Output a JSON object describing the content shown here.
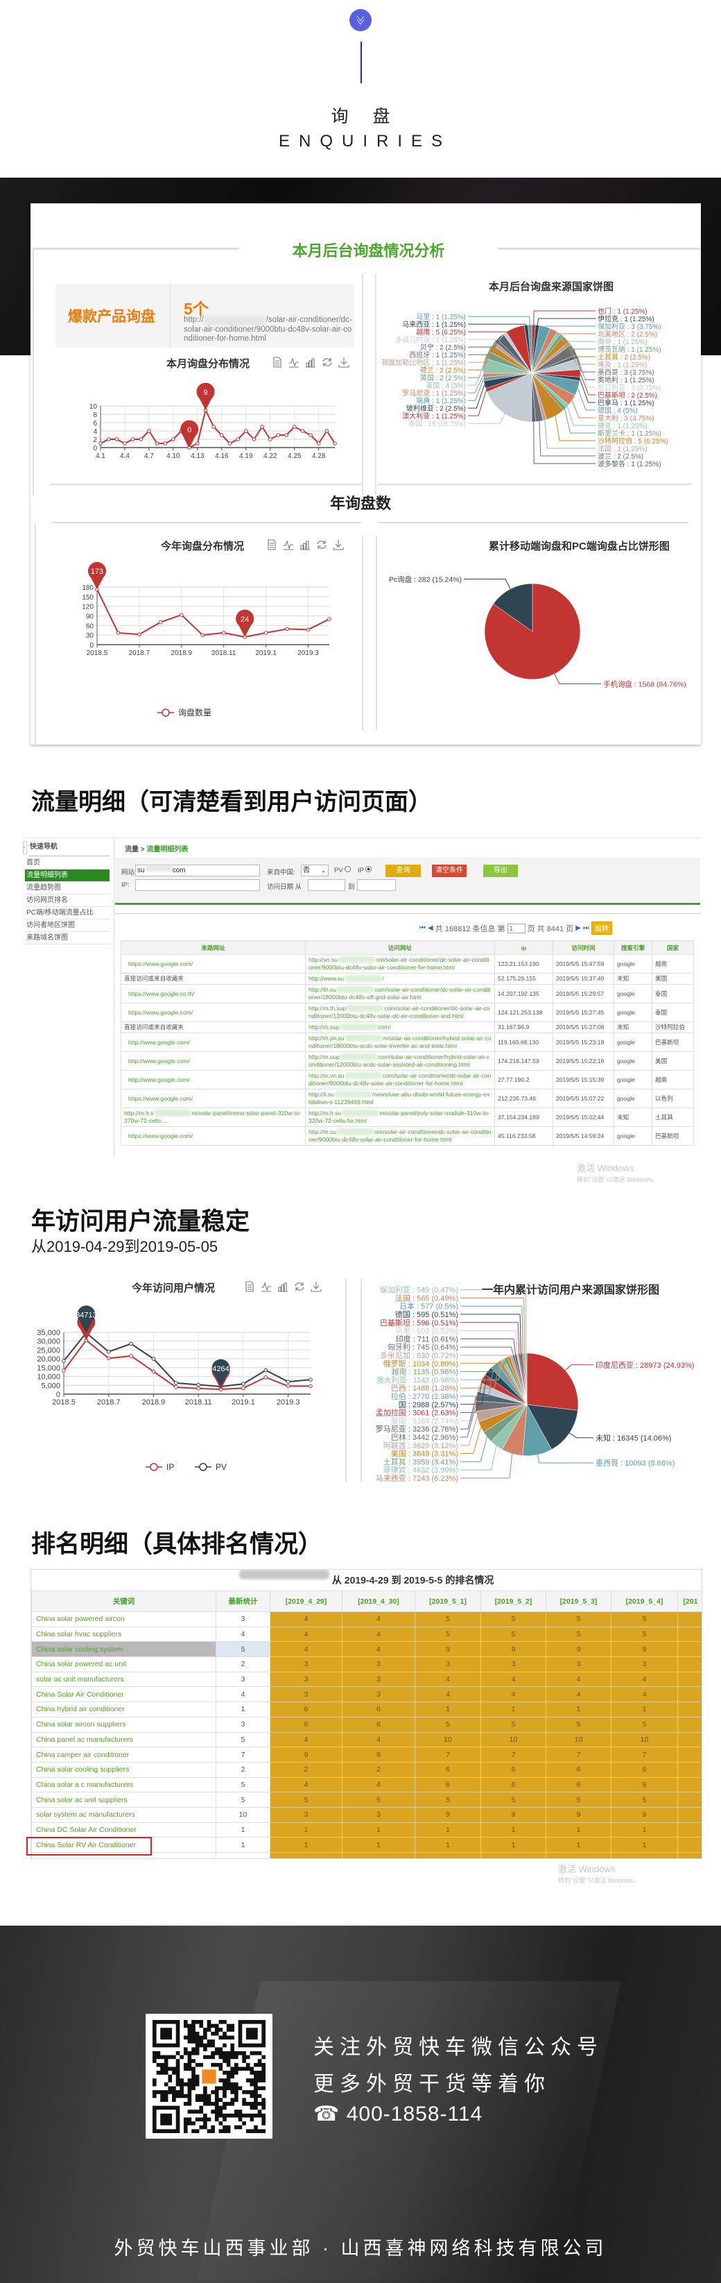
{
  "header": {
    "title_cn": "询 盘",
    "title_en": "ENQUIRIES",
    "icon": "double-chevron-down-icon"
  },
  "colors": {
    "accent_blue": "#5a5fe0",
    "green": "#4a9e2c",
    "orange": "#f07c0c",
    "red": "#c23531",
    "dark": "#2f4554",
    "rank_yellow": "#daa520",
    "palette": [
      "#c23531",
      "#2f4554",
      "#61a0a8",
      "#d48265",
      "#91c7ae",
      "#749f83",
      "#ca8622",
      "#bda29a",
      "#6e7074",
      "#546570",
      "#c4ccd3"
    ]
  },
  "analysis": {
    "title": "本月后台询盘情况分析",
    "hot_label": "爆款产品询盘",
    "hot_count": "5个",
    "hot_url_prefix": "http://",
    "hot_url_suffix": "/solar-air-conditioner/dc-solar-air-conditioner/9000btu-dc48v-solar-air-conditioner-for-home.html",
    "year_title": "年询盘数"
  },
  "toolbox": [
    "data-view-icon",
    "line-chart-icon",
    "bar-chart-icon",
    "restore-icon",
    "save-image-icon"
  ],
  "chart_data": [
    {
      "type": "line",
      "title": "本月询盘分布情况",
      "categories": [
        "4.1",
        "4.2",
        "4.3",
        "4.4",
        "4.5",
        "4.6",
        "4.7",
        "4.8",
        "4.9",
        "4.10",
        "4.11",
        "4.12",
        "4.13",
        "4.14",
        "4.15",
        "4.16",
        "4.17",
        "4.18",
        "4.19",
        "4.20",
        "4.21",
        "4.22",
        "4.23",
        "4.24",
        "4.25",
        "4.26",
        "4.27",
        "4.28",
        "4.29",
        "4.30"
      ],
      "xtick_labels": [
        "4.1",
        "4.4",
        "4.7",
        "4.10",
        "4.13",
        "4.16",
        "4.19",
        "4.22",
        "4.25",
        "4.28"
      ],
      "series": [
        {
          "values": [
            1,
            2,
            2,
            1,
            2,
            2,
            4,
            1,
            1,
            2,
            4,
            0,
            1,
            9,
            5,
            3,
            1,
            2,
            4,
            2,
            5,
            2,
            3,
            3,
            5,
            4,
            3,
            1,
            4,
            1
          ],
          "color": "#c23531"
        }
      ],
      "ylim": [
        0,
        10
      ],
      "yticks": [
        0,
        2,
        4,
        6,
        8,
        10
      ],
      "grid": true,
      "markers": [
        {
          "label": "9",
          "category": "4.14",
          "value": 9,
          "color": "#c23531"
        },
        {
          "label": "0",
          "category": "4.12",
          "value": 0,
          "color": "#c23531"
        }
      ]
    },
    {
      "type": "pie",
      "title": "本月后台询盘来源国家饼图",
      "slices": [
        {
          "name": "也门",
          "value": 1,
          "percent": "1.25%"
        },
        {
          "name": "伊拉克",
          "value": 1,
          "percent": "1.25%"
        },
        {
          "name": "保加利亚",
          "value": 3,
          "percent": "3.75%"
        },
        {
          "name": "北美地区",
          "value": 2,
          "percent": "2.5%"
        },
        {
          "name": "南非",
          "value": 1,
          "percent": "1.25%"
        },
        {
          "name": "博茨瓦纳",
          "value": 1,
          "percent": "1.25%"
        },
        {
          "name": "土耳其",
          "value": 2,
          "percent": "2.5%"
        },
        {
          "name": "埃及",
          "value": 1,
          "percent": "1.25%"
        },
        {
          "name": "墨西哥",
          "value": 3,
          "percent": "3.75%"
        },
        {
          "name": "奥地利",
          "value": 1,
          "percent": "1.25%"
        },
        {
          "name": "尼日利亚",
          "value": 3,
          "percent": "3.75%"
        },
        {
          "name": "巴基斯坦",
          "value": 2,
          "percent": "2.5%"
        },
        {
          "name": "巴拿马",
          "value": 1,
          "percent": "1.25%"
        },
        {
          "name": "德国",
          "value": 4,
          "percent": "5%"
        },
        {
          "name": "意大利",
          "value": 3,
          "percent": "3.75%"
        },
        {
          "name": "捷克",
          "value": 1,
          "percent": "1.25%"
        },
        {
          "name": "斯里兰卡",
          "value": 1,
          "percent": "1.25%"
        },
        {
          "name": "沙特阿拉伯",
          "value": 5,
          "percent": "6.25%"
        },
        {
          "name": "法国",
          "value": 1,
          "percent": "1.25%"
        },
        {
          "name": "波兰",
          "value": 2,
          "percent": "2.5%"
        },
        {
          "name": "波多黎各",
          "value": 1,
          "percent": "1.25%"
        },
        {
          "name": "泰国",
          "value": 15,
          "percent": "18.75%"
        },
        {
          "name": "澳大利亚",
          "value": 1,
          "percent": "1.25%"
        },
        {
          "name": "玻利维亚",
          "value": 2,
          "percent": "2.5%"
        },
        {
          "name": "瑞典",
          "value": 1,
          "percent": "1.25%"
        },
        {
          "name": "罗马尼亚",
          "value": 1,
          "percent": "1.25%"
        },
        {
          "name": "美国",
          "value": 4,
          "percent": "5%"
        },
        {
          "name": "英国",
          "value": 2,
          "percent": "2.5%"
        },
        {
          "name": "荷兰",
          "value": 2,
          "percent": "2.5%"
        },
        {
          "name": "荷属加勒比地区",
          "value": 1,
          "percent": "1.25%"
        },
        {
          "name": "西班牙",
          "value": 1,
          "percent": "1.25%"
        },
        {
          "name": "贝宁",
          "value": 2,
          "percent": "2.5%"
        },
        {
          "name": "赤道几内亚",
          "value": 1,
          "percent": "1.25%"
        },
        {
          "name": "越南",
          "value": 5,
          "percent": "6.25%"
        },
        {
          "name": "马来西亚",
          "value": 1,
          "percent": "1.25%"
        },
        {
          "name": "马里",
          "value": 1,
          "percent": "1.25%"
        }
      ]
    },
    {
      "type": "line",
      "title": "今年询盘分布情况",
      "categories": [
        "2018.5",
        "2018.6",
        "2018.7",
        "2018.8",
        "2018.9",
        "2018.10",
        "2018.11",
        "2018.12",
        "2019.1",
        "2019.2",
        "2019.3",
        "2019.4"
      ],
      "xtick_labels": [
        "2018.5",
        "2018.7",
        "2018.9",
        "2018.11",
        "2019.1",
        "2019.3"
      ],
      "series": [
        {
          "name": "询盘数量",
          "values": [
            173,
            37,
            32,
            70,
            93,
            30,
            37,
            24,
            37,
            49,
            47,
            80
          ],
          "color": "#c23531"
        }
      ],
      "ylim": [
        0,
        180
      ],
      "yticks": [
        0,
        30,
        60,
        90,
        120,
        150,
        180
      ],
      "grid": true,
      "legend": "bottom",
      "markers": [
        {
          "label": "173",
          "category": "2018.5",
          "value": 173,
          "color": "#c23531"
        },
        {
          "label": "24",
          "category": "2018.12",
          "value": 24,
          "color": "#c23531"
        }
      ]
    },
    {
      "type": "pie",
      "title": "累计移动端询盘和PC端询盘占比饼形图",
      "slices": [
        {
          "name": "手机询盘",
          "value": 1568,
          "percent": "84.76%",
          "color": "#c23531"
        },
        {
          "name": "Pc询盘",
          "value": 282,
          "percent": "15.24%",
          "color": "#2f4554"
        }
      ]
    },
    {
      "type": "line",
      "title": "今年访问用户情况",
      "categories": [
        "2018.5",
        "2018.6",
        "2018.7",
        "2018.8",
        "2018.9",
        "2018.10",
        "2018.11",
        "2018.12",
        "2019.1",
        "2019.2",
        "2019.3",
        "2019.4"
      ],
      "xtick_labels": [
        "2018.5",
        "2018.7",
        "2018.9",
        "2018.11",
        "2019.1",
        "2019.3"
      ],
      "series": [
        {
          "name": "IP",
          "values": [
            13400,
            30500,
            20300,
            21600,
            12800,
            3900,
            3200,
            2700,
            3400,
            9500,
            4500,
            4500
          ],
          "color": "#c23531"
        },
        {
          "name": "PV",
          "values": [
            18800,
            34713,
            24000,
            28500,
            20000,
            6300,
            5300,
            4264,
            5800,
            13500,
            7000,
            8200
          ],
          "color": "#2f4554"
        }
      ],
      "ylim": [
        0,
        35000
      ],
      "yticks": [
        0,
        5000,
        10000,
        15000,
        20000,
        25000,
        30000,
        35000
      ],
      "ytick_labels": [
        "0",
        "5,000",
        "10,000",
        "15,000",
        "20,000",
        "25,000",
        "30,000",
        "35,000"
      ],
      "grid": true,
      "legend": "bottom",
      "markers": [
        {
          "label": "",
          "category": "2018.6",
          "value": 30500,
          "color": "#c23531"
        },
        {
          "label": "",
          "category": "2018.12",
          "value": 2700,
          "color": "#c23531"
        },
        {
          "label": "34713",
          "category": "2018.6",
          "value": 34713,
          "color": "#2f4554"
        },
        {
          "label": "4264",
          "category": "2018.12",
          "value": 4264,
          "color": "#2f4554"
        }
      ]
    },
    {
      "type": "pie",
      "title": "一年内累计访问用户来源国家饼形图",
      "slices": [
        {
          "name": "印度尼西亚",
          "value": 28973,
          "percent": "24.93%"
        },
        {
          "name": "未知",
          "value": 16345,
          "percent": "14.06%"
        },
        {
          "name": "墨西哥",
          "value": 10093,
          "percent": "8.68%"
        },
        {
          "name": "马来西亚",
          "value": 7243,
          "percent": "6.23%"
        },
        {
          "name": "菲律宾",
          "value": 4632,
          "percent": "3.99%"
        },
        {
          "name": "土耳其",
          "value": 3959,
          "percent": "3.41%"
        },
        {
          "name": "美国",
          "value": 3849,
          "percent": "3.31%"
        },
        {
          "name": "阿联酋",
          "value": 3629,
          "percent": "3.12%"
        },
        {
          "name": "巴林",
          "value": 3442,
          "percent": "2.96%"
        },
        {
          "name": "罗马尼亚",
          "value": 3236,
          "percent": "2.78%"
        },
        {
          "name": "英国",
          "value": 3184,
          "percent": "2.74%"
        },
        {
          "name": "孟加拉国",
          "value": 3061,
          "percent": "2.63%"
        },
        {
          "name": "国",
          "value": 2988,
          "percent": "2.57%"
        },
        {
          "name": "拉伯",
          "value": 2770,
          "percent": "2.38%"
        },
        {
          "name": "巴西",
          "value": 1488,
          "percent": "1.28%"
        },
        {
          "name": "澳大利亚",
          "value": 1142,
          "percent": "0.98%"
        },
        {
          "name": "越南",
          "value": 1135,
          "percent": "0.98%"
        },
        {
          "name": "俄罗斯",
          "value": 1034,
          "percent": "0.89%"
        },
        {
          "name": "多米尼加",
          "value": 830,
          "percent": "0.72%"
        },
        {
          "name": "匈牙利",
          "value": 745,
          "percent": "0.64%"
        },
        {
          "name": "印度",
          "value": 711,
          "percent": "0.61%"
        },
        {
          "name": "马里",
          "value": 603,
          "percent": "0.52%"
        },
        {
          "name": "巴基斯坦",
          "value": 596,
          "percent": "0.51%"
        },
        {
          "name": "德国",
          "value": 595,
          "percent": "0.51%"
        },
        {
          "name": "日本",
          "value": 577,
          "percent": "0.5%"
        },
        {
          "name": "法国",
          "value": 565,
          "percent": "0.49%"
        },
        {
          "name": "保加利亚",
          "value": 549,
          "percent": "0.47%"
        }
      ]
    }
  ],
  "traffic": {
    "title": "流量明细（可清楚看到用户访问页面）",
    "sidebar": {
      "title": "快速导航",
      "items": [
        "首页",
        "流量明细列表",
        "流量趋势图",
        "访问网页排名",
        "PC端/移动端流量占比",
        "访问者地区饼图",
        "来路域名饼图"
      ],
      "active": 1
    },
    "breadcrumb": {
      "root": "流量",
      "sep": " > ",
      "current": "流量明细列表"
    },
    "filter": {
      "site_label": "网站:",
      "site_prefix": "su",
      "site_suffix": "com",
      "china_label": "来自中国:",
      "china_value": "否",
      "pv_label": "PV",
      "ip_label": "IP",
      "ip_checked": true,
      "ip_field_label": "IP:",
      "ip_value": "",
      "date_label": "访问日期 从",
      "date_to": "到",
      "query": "查询",
      "clear": "清空条件",
      "export": "导出"
    },
    "pager": {
      "text_total": "共 168812 条信息 第",
      "page": "1",
      "text_pages": "页 共 8441 页",
      "go": "跳转"
    },
    "columns": [
      "来路网址",
      "访问网址",
      "ip",
      "访问时间",
      "搜索引擎",
      "国家"
    ],
    "rows": [
      [
        "https://www.google.com/",
        [
          "http://vn.su",
          "om/solar-air-conditioner/dc-solar-air-conditioner/9000btu-dc48v-solar-air-conditioner-for-home.html"
        ],
        "123.21.153.190",
        "2019/5/5 15:47:59",
        "google",
        "越南"
      ],
      [
        "直接访问或来自收藏夹",
        [
          "http://www.su",
          "/"
        ],
        "52.175.29.155",
        "2019/5/5 15:37:49",
        "未知",
        "美国"
      ],
      [
        "https://www.google.co.th/",
        [
          "http://th.su",
          "com/solar-air-conditioner/dc-solar-air-conditioner/18000btu-dc48v-off-grid-solar-air.html"
        ],
        "14.207.192.135",
        "2019/5/5 15:29:57",
        "google",
        "泰国"
      ],
      [
        "https://www.google.com/",
        [
          "http://m.th.sup",
          "com/solar-air-conditioner/dc-solar-air-conditioner/12000btu-dc48v-solar-dc-air-conditioner-and.html"
        ],
        "124.121.253.138",
        "2019/5/5 15:27:45",
        "google",
        "泰国"
      ],
      [
        "直接访问或来自收藏夹",
        [
          "http://m.sup",
          "com/"
        ],
        "31.167.96.9",
        "2019/5/5 15:27:08",
        "未知",
        "沙特阿拉伯"
      ],
      [
        "http://www.google.com/",
        [
          "http://m.pk.su",
          "m/solar-air-conditioner/hybrid-solar-air-conditioner/18000btu-acdc-solar-inverter-ac-and-solar.html"
        ],
        "119.160.68.130",
        "2019/5/5 15:23:19",
        "google",
        "巴基斯坦"
      ],
      [
        "http://www.google.com/",
        [
          "http://m.sup",
          "com/solar-air-conditioner/hybrid-solar-air-conditioner/12000btu-acdc-solar-assisted-air-conditioning.html"
        ],
        "174.218.147.59",
        "2019/5/5 15:22:16",
        "google",
        "美国"
      ],
      [
        "http://www.google.com/",
        [
          "http://m.vn.su",
          "com/solar-air-conditioner/dc-solar-air-conditioner/9000btu-dc48v-solar-air-conditioner-for-home.html"
        ],
        "27.77.190.2",
        "2019/5/5 15:15:39",
        "google",
        "越南"
      ],
      [
        "https://www.google.com/",
        [
          "http://il.su",
          "/news/uae-abu-dhabi-world-future-energy-exhibition-s-11239489.html"
        ],
        "212.235.73.46",
        "2019/5/5 15:07:22",
        "google",
        "以色列"
      ],
      [
        [
          "http://m.tr.s",
          "m/solar-panel/mono-solar-panel-310w-to-370w-72-cells-..."
        ],
        [
          "http://m.tr.su",
          "m/solar-panel/poly-solar-module-310w-to-320w-72-cells-for.html"
        ],
        "37.154.234.189",
        "2019/5/5 15:02:44",
        "未知",
        "土耳其"
      ],
      [
        "https://www.google.com/",
        [
          "http://m.su",
          "om/solar-air-conditioner/dc-solar-air-conditioner/9000btu-dc48v-solar-air-conditioner-for-home.html"
        ],
        "45.116.233.58",
        "2019/5/5 14:59:24",
        "google",
        "巴基斯坦"
      ]
    ]
  },
  "watermark": {
    "line1": "激活 Windows",
    "line2": "转到\"设置\"以激活 Windows。"
  },
  "visitors": {
    "title": "年访问用户流量稳定",
    "range": "从2019-04-29到2019-05-05"
  },
  "ranking": {
    "title": "排名明细（具体排名情况）",
    "caption": "从 2019-4-29 到 2019-5-5 的排名情况",
    "columns": [
      "关键词",
      "最新统计",
      "[2019_4_29]",
      "[2019_4_30]",
      "[2019_5_1]",
      "[2019_5_2]",
      "[2019_5_3]",
      "[2019_5_4]",
      "[201"
    ],
    "selected_row": 2,
    "boxed_row": 15,
    "rows": [
      [
        "China solar powered aircon",
        3,
        4,
        4,
        5,
        5,
        5,
        5
      ],
      [
        "China solar hvac suppliers",
        4,
        4,
        4,
        5,
        5,
        5,
        5
      ],
      [
        "China solar cooling system",
        5,
        4,
        4,
        9,
        9,
        9,
        9
      ],
      [
        "China solar powered ac unit",
        2,
        3,
        3,
        3,
        3,
        3,
        3
      ],
      [
        "solar ac unit manufacturers",
        3,
        3,
        3,
        4,
        4,
        4,
        4
      ],
      [
        "China Solar Air Conditioner",
        4,
        3,
        3,
        4,
        4,
        4,
        4
      ],
      [
        "China hybrid air conditioner",
        1,
        6,
        6,
        1,
        1,
        1,
        1
      ],
      [
        "China solar aircon suppliers",
        3,
        6,
        6,
        5,
        5,
        5,
        5
      ],
      [
        "China panel ac manufacturers",
        5,
        4,
        4,
        10,
        10,
        10,
        10
      ],
      [
        "China camper air conditioner",
        7,
        9,
        9,
        7,
        7,
        7,
        7
      ],
      [
        "China solar cooling suppliers",
        2,
        2,
        2,
        6,
        6,
        6,
        6
      ],
      [
        "China solar a c manufacturers",
        5,
        4,
        4,
        6,
        6,
        6,
        6
      ],
      [
        "China solar ac unit suppliers",
        5,
        5,
        5,
        5,
        5,
        5,
        5
      ],
      [
        "solar system ac manufacturers",
        10,
        3,
        3,
        9,
        9,
        9,
        9
      ],
      [
        "China DC Solar Air Conditioner",
        1,
        1,
        1,
        1,
        1,
        1,
        1
      ],
      [
        "China Solar RV Air Conditioner",
        1,
        1,
        1,
        1,
        1,
        1,
        1
      ]
    ]
  },
  "footer": {
    "line1": "关注外贸快车微信公众号",
    "line2": "更多外贸干货等着你",
    "phone": "400-1858-114",
    "phone_icon": "telephone-icon",
    "company": "外贸快车山西事业部 · 山西喜神网络科技有限公司"
  }
}
